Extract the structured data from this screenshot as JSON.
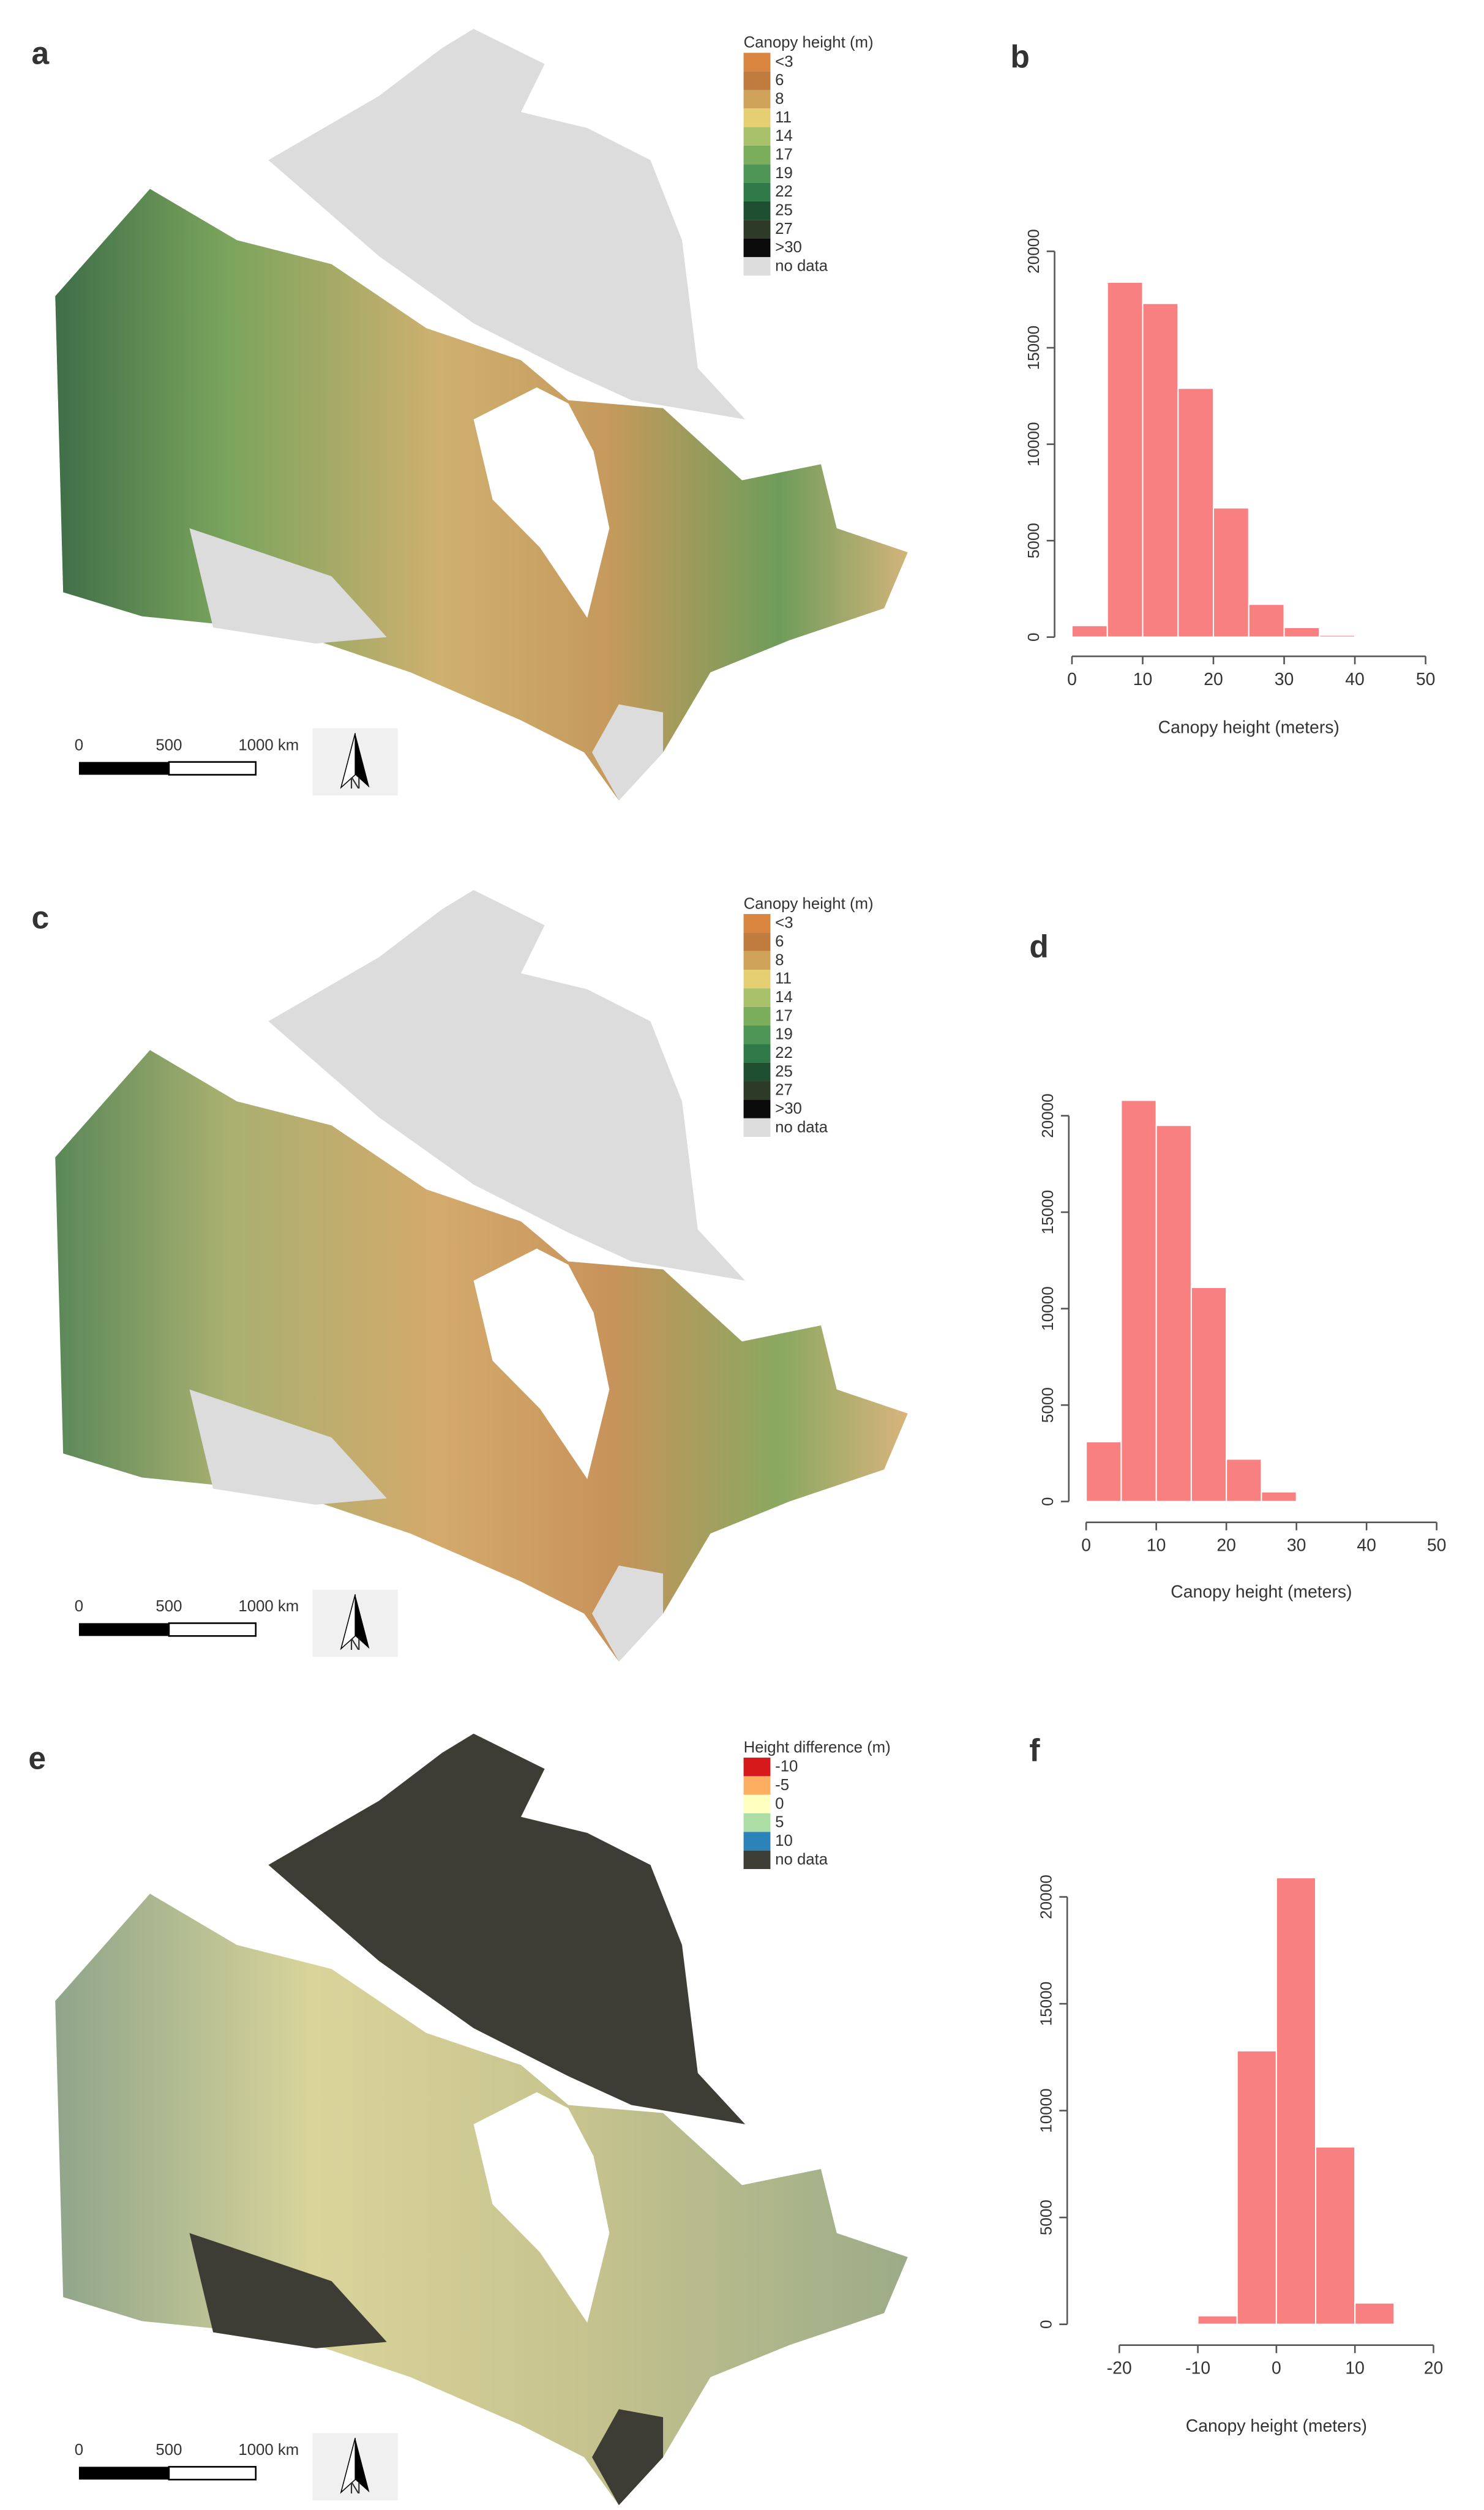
{
  "chart_data": [
    {
      "type": "map",
      "panel": "a",
      "legend_title": "Canopy height (m)",
      "legend": [
        {
          "label": "<3",
          "color": "#d9843f"
        },
        {
          "label": "6",
          "color": "#bf7c3e"
        },
        {
          "label": "8",
          "color": "#cfa35a"
        },
        {
          "label": "11",
          "color": "#e6cf72"
        },
        {
          "label": "14",
          "color": "#a9c16b"
        },
        {
          "label": "17",
          "color": "#7aae5a"
        },
        {
          "label": "19",
          "color": "#4d9656"
        },
        {
          "label": "22",
          "color": "#2f7a48"
        },
        {
          "label": "25",
          "color": "#1d4f30"
        },
        {
          "label": "27",
          "color": "#2d3a26"
        },
        {
          "label": ">30",
          "color": "#0a0a0a"
        },
        {
          "label": "no data",
          "color": "#dcdcdc"
        }
      ],
      "scale_labels": [
        "0",
        "500",
        "1000 km"
      ],
      "north": "N"
    },
    {
      "type": "histogram",
      "panel": "b",
      "bins": [
        0,
        5,
        10,
        15,
        20,
        25,
        30,
        35,
        40
      ],
      "counts": [
        600,
        18400,
        17300,
        12900,
        6700,
        1700,
        500,
        100
      ],
      "color": "#f98080",
      "xlim": [
        0,
        50
      ],
      "xticks": [
        0,
        10,
        20,
        30,
        40,
        50
      ],
      "ylim": [
        0,
        20000
      ],
      "yticks": [
        0,
        5000,
        10000,
        15000,
        20000
      ],
      "x_label": "Canopy height (meters)"
    },
    {
      "type": "map",
      "panel": "c",
      "legend_title": "Canopy height (m)",
      "legend": [
        {
          "label": "<3",
          "color": "#d9843f"
        },
        {
          "label": "6",
          "color": "#bf7c3e"
        },
        {
          "label": "8",
          "color": "#cfa35a"
        },
        {
          "label": "11",
          "color": "#e6cf72"
        },
        {
          "label": "14",
          "color": "#a9c16b"
        },
        {
          "label": "17",
          "color": "#7aae5a"
        },
        {
          "label": "19",
          "color": "#4d9656"
        },
        {
          "label": "22",
          "color": "#2f7a48"
        },
        {
          "label": "25",
          "color": "#1d4f30"
        },
        {
          "label": "27",
          "color": "#2d3a26"
        },
        {
          "label": ">30",
          "color": "#0a0a0a"
        },
        {
          "label": "no data",
          "color": "#dcdcdc"
        }
      ],
      "scale_labels": [
        "0",
        "500",
        "1000 km"
      ],
      "north": "N"
    },
    {
      "type": "histogram",
      "panel": "d",
      "bins": [
        0,
        5,
        10,
        15,
        20,
        25,
        30
      ],
      "counts": [
        3100,
        20800,
        19500,
        11100,
        2200,
        500
      ],
      "color": "#f98080",
      "xlim": [
        0,
        50
      ],
      "xticks": [
        0,
        10,
        20,
        30,
        40,
        50
      ],
      "ylim": [
        0,
        20000
      ],
      "yticks": [
        0,
        5000,
        10000,
        15000,
        20000
      ],
      "x_label": "Canopy height (meters)"
    },
    {
      "type": "map",
      "panel": "e",
      "legend_title": "Height difference (m)",
      "legend": [
        {
          "label": "-10",
          "color": "#d7191c"
        },
        {
          "label": "-5",
          "color": "#fdae61"
        },
        {
          "label": "0",
          "color": "#ffffbf"
        },
        {
          "label": "5",
          "color": "#abdda4"
        },
        {
          "label": "10",
          "color": "#2b83ba"
        },
        {
          "label": "no data",
          "color": "#3d3c35"
        }
      ],
      "scale_labels": [
        "0",
        "500",
        "1000 km"
      ],
      "north": "N"
    },
    {
      "type": "histogram",
      "panel": "f",
      "bins": [
        -10,
        -5,
        0,
        5,
        10,
        15
      ],
      "counts": [
        400,
        12800,
        20900,
        8300,
        1000
      ],
      "color": "#f98080",
      "xlim": [
        -20,
        20
      ],
      "xticks": [
        -20,
        -10,
        0,
        10,
        20
      ],
      "ylim": [
        0,
        20000
      ],
      "yticks": [
        0,
        5000,
        10000,
        15000,
        20000
      ],
      "x_label": "Canopy height (meters)"
    }
  ]
}
